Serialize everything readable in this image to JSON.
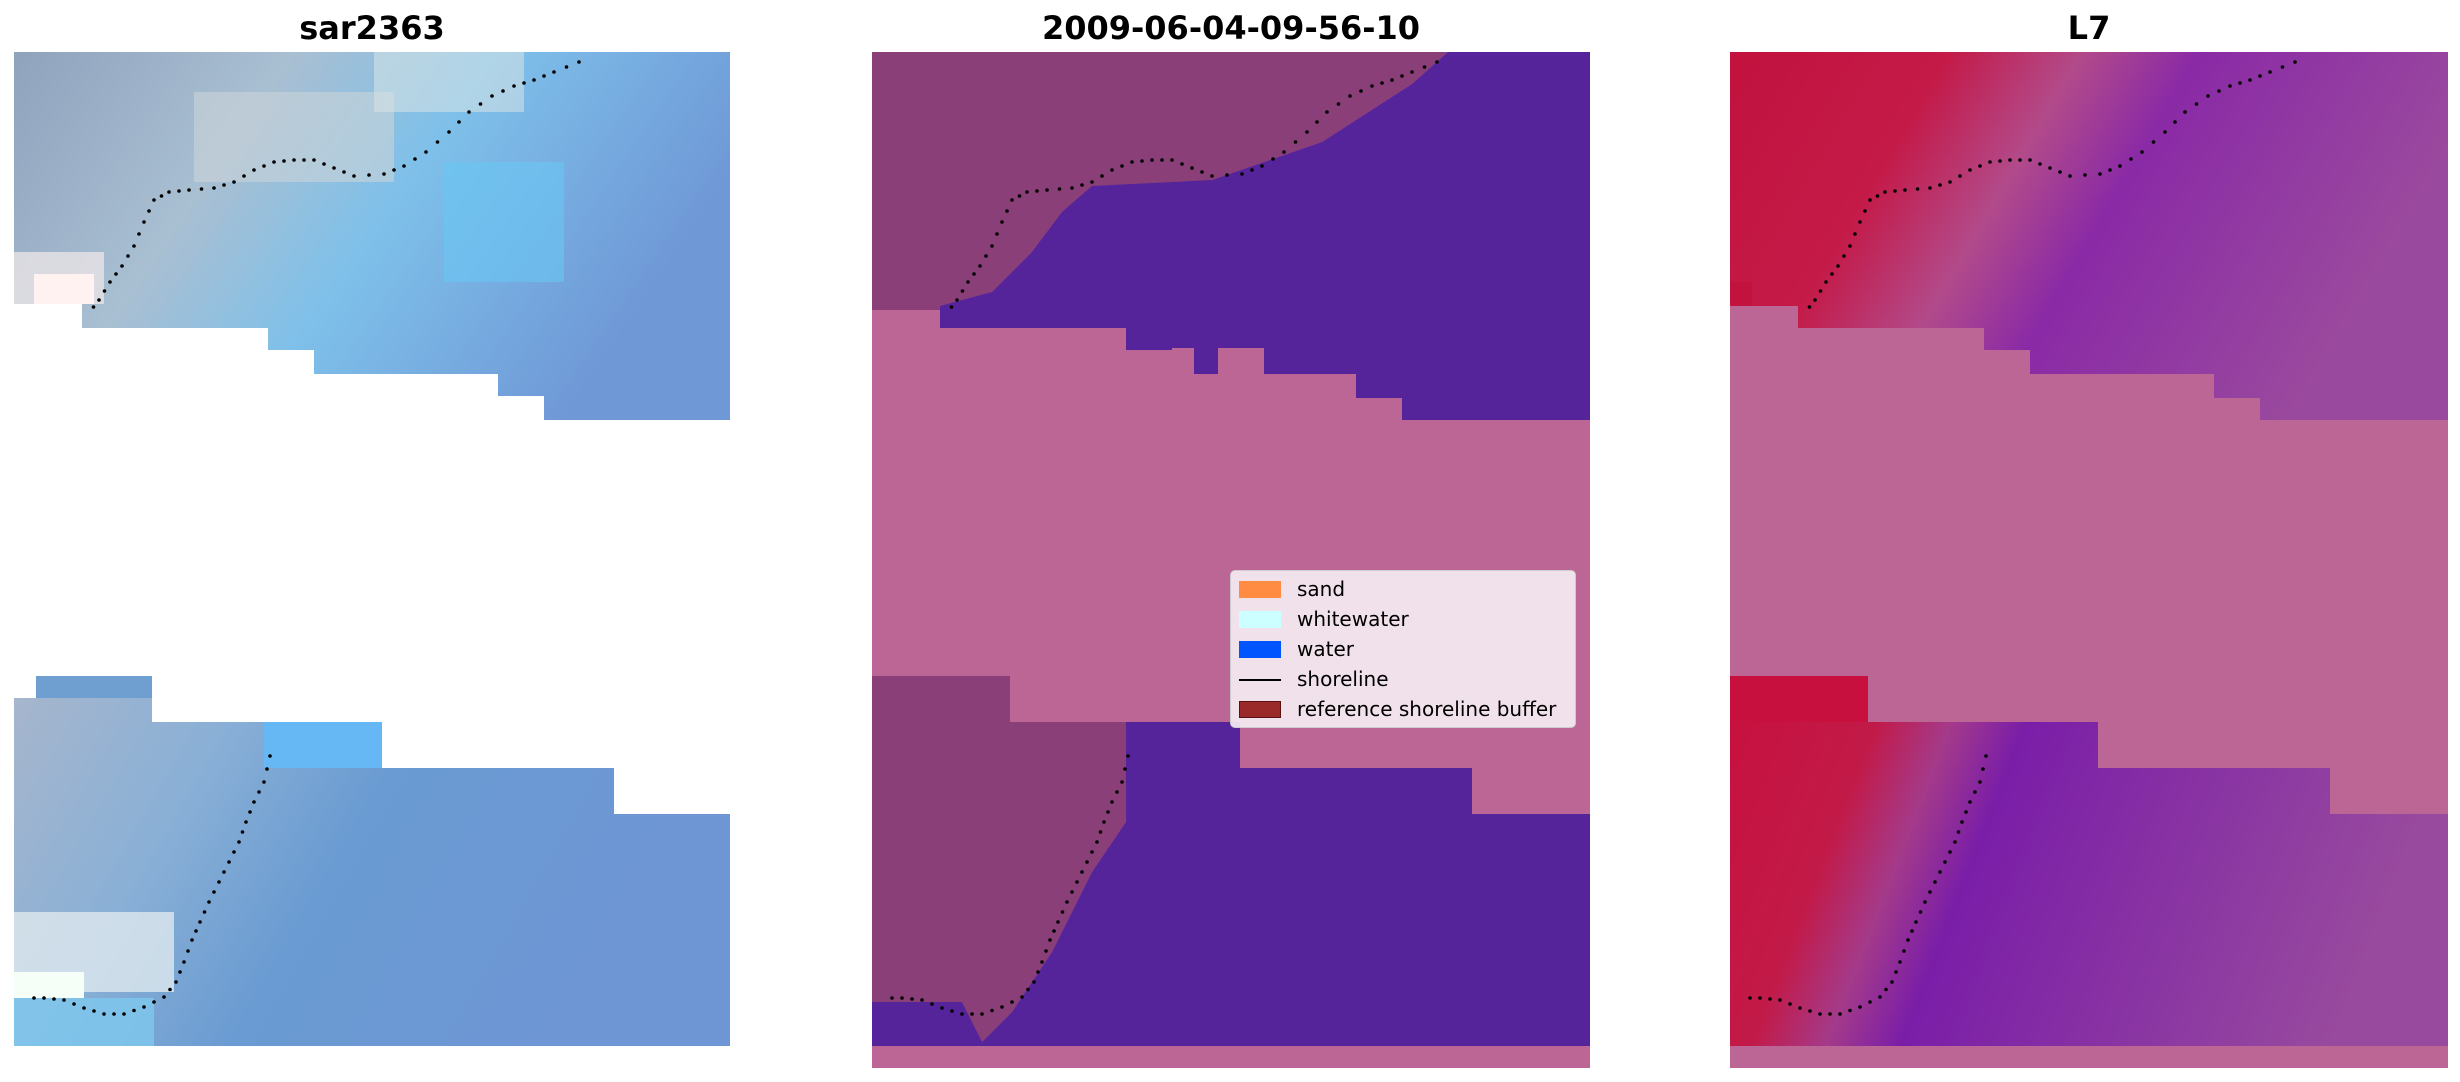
{
  "panels": [
    {
      "title": "sar2363",
      "name": "rgb-image"
    },
    {
      "title": "2009-06-04-09-56-10",
      "name": "classification-image"
    },
    {
      "title": "L7",
      "name": "index-image"
    }
  ],
  "legend": {
    "items": [
      {
        "label": "sand",
        "color": "#ff8c42",
        "kind": "patch"
      },
      {
        "label": "whitewater",
        "color": "#ccffff",
        "kind": "patch"
      },
      {
        "label": "water",
        "color": "#0055ff",
        "kind": "patch"
      },
      {
        "label": "shoreline",
        "color": "#000000",
        "kind": "line"
      },
      {
        "label": "reference shoreline buffer",
        "color": "#9a2a2a",
        "kind": "patch"
      }
    ]
  },
  "colors": {
    "buffer_overlay": "#bc6696",
    "water_class": "#56249a",
    "sand_tinted": "#8a3f79",
    "index_high": "#c2123e",
    "index_low": "#9a4a9e",
    "rgb_water": "#6e95d4",
    "rgb_sand": "#b6bed2"
  }
}
